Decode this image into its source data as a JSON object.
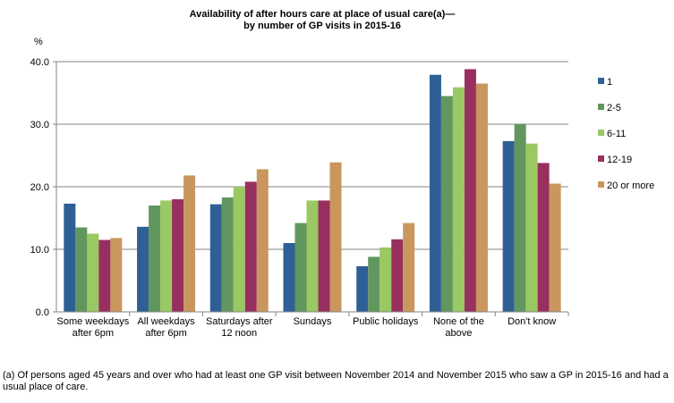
{
  "chart_data": {
    "type": "bar",
    "title": [
      "Availability of after hours care at place of usual care(a)—",
      "by number of GP visits in 2015-16"
    ],
    "ylabel": "%",
    "ylim": [
      0,
      40
    ],
    "yticks": [
      "0.0",
      "10.0",
      "20.0",
      "30.0",
      "40.0"
    ],
    "grid": true,
    "legend_placement": "right",
    "categories": [
      [
        "Some weekdays",
        "after 6pm"
      ],
      [
        "All weekdays",
        "after 6pm"
      ],
      [
        "Saturdays after",
        "12 noon"
      ],
      [
        "Sundays"
      ],
      [
        "Public holidays"
      ],
      [
        "None of the",
        "above"
      ],
      [
        "Don't know"
      ]
    ],
    "series": [
      {
        "name": "1",
        "color": "#2e6096",
        "values": [
          17.3,
          13.6,
          17.2,
          11.0,
          7.3,
          37.9,
          27.3
        ]
      },
      {
        "name": "2-5",
        "color": "#61975e",
        "values": [
          13.5,
          17.0,
          18.3,
          14.2,
          8.8,
          34.5,
          30.0
        ]
      },
      {
        "name": "6-11",
        "color": "#9ac862",
        "values": [
          12.5,
          17.8,
          20.0,
          17.8,
          10.3,
          35.9,
          26.9
        ]
      },
      {
        "name": "12-19",
        "color": "#97305e",
        "values": [
          11.5,
          18.0,
          20.8,
          17.8,
          11.6,
          38.8,
          23.8
        ]
      },
      {
        "name": "20 or more",
        "color": "#c9975e",
        "values": [
          11.8,
          21.8,
          22.8,
          23.9,
          14.2,
          36.5,
          20.5
        ]
      }
    ]
  },
  "footnote": "(a) Of persons aged 45 years and over who had at least one GP visit between November 2014 and November 2015 who saw a GP in 2015-16 and had a usual place of care."
}
